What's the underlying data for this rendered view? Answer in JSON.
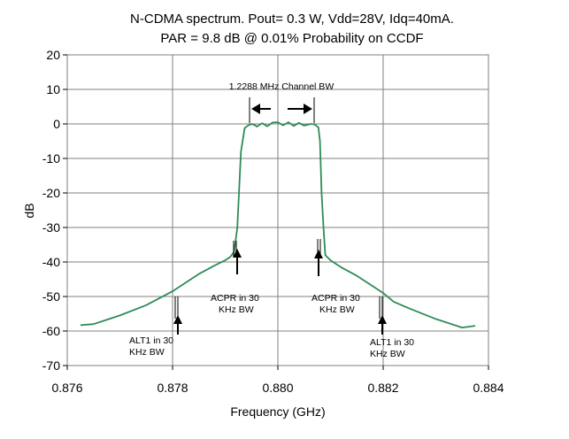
{
  "chart_data": {
    "type": "line",
    "title": "N-CDMA spectrum.  Pout= 0.3 W, Vdd=28V, Idq=40mA.",
    "subtitle": "PAR = 9.8 dB @ 0.01% Probability on CCDF",
    "xlabel": "Frequency (GHz)",
    "ylabel": "dB",
    "xlim": [
      0.876,
      0.884
    ],
    "ylim": [
      -70,
      20
    ],
    "grid": true,
    "line_color": "#2e8b57",
    "x_ticks": [
      0.876,
      0.878,
      0.88,
      0.882,
      0.884
    ],
    "x_tick_labels": [
      "0.876",
      "0.878",
      "0.880",
      "0.882",
      "0.884"
    ],
    "y_ticks": [
      20,
      10,
      0,
      -10,
      -20,
      -30,
      -40,
      -50,
      -60,
      -70
    ],
    "y_tick_labels": [
      "20",
      "10",
      "0",
      "-10",
      "-20",
      "-30",
      "-40",
      "-50",
      "-60",
      "-70"
    ],
    "series": [
      {
        "x": [
          0.87625,
          0.8765,
          0.877,
          0.8775,
          0.878,
          0.8783,
          0.8785,
          0.8788,
          0.879,
          0.8791,
          0.87917,
          0.87923,
          0.8793,
          0.87937,
          0.87943,
          0.8795,
          0.8796,
          0.8797,
          0.8798,
          0.8799,
          0.88,
          0.8801,
          0.8802,
          0.8803,
          0.8804,
          0.8805,
          0.87957,
          0.88063,
          0.88077,
          0.8807,
          0.8808,
          0.88083,
          0.88087,
          0.8809,
          0.881,
          0.8812,
          0.8815,
          0.8818,
          0.882,
          0.8822,
          0.8825,
          0.883,
          0.8835,
          0.88375
        ],
        "y": [
          -58.3,
          -58,
          -55.5,
          -52.5,
          -48.5,
          -45.5,
          -43.5,
          -41,
          -39.5,
          -38.5,
          -37,
          -30,
          -8,
          -1.2,
          -0.5,
          0,
          -0.8,
          0.2,
          -0.7,
          0.4,
          0.5,
          -0.4,
          0.5,
          -0.6,
          0.3,
          -0.5,
          -0.4,
          0,
          -1,
          -0.2,
          -5,
          -20,
          -31,
          -38,
          -39.5,
          -41.5,
          -44,
          -47,
          -49,
          -51.5,
          -53.5,
          -56.5,
          -59,
          -58.5
        ]
      }
    ],
    "annotations": {
      "channel_bw": "1.2288 MHz Channel BW",
      "acpr_left_l1": "ACPR in 30",
      "acpr_left_l2": "KHz BW",
      "acpr_right_l1": "ACPR in 30",
      "acpr_right_l2": "KHz BW",
      "alt1_left_l1": "ALT1 in 30",
      "alt1_left_l2": "KHz BW",
      "alt1_right_l1": "ALT1 in 30",
      "alt1_right_l2": "KHz BW"
    }
  }
}
